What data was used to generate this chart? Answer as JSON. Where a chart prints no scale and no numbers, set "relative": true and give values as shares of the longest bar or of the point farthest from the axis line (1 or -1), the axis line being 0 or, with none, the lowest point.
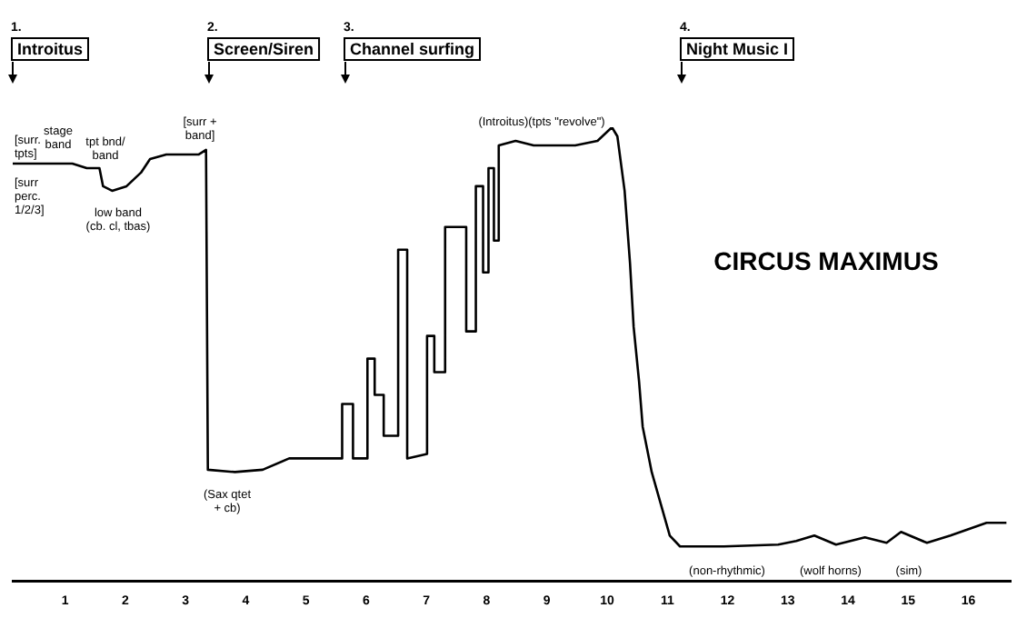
{
  "chart_data": {
    "type": "line",
    "title": "CIRCUS MAXIMUS",
    "relative": true,
    "grid": false,
    "legend": false,
    "marker": "none",
    "line_style": "solid",
    "xlim": [
      0.13,
      16.7
    ],
    "xticks": [
      1,
      2,
      3,
      4,
      5,
      6,
      7,
      8,
      9,
      10,
      11,
      12,
      13,
      14,
      15,
      16
    ],
    "x": [
      0.13,
      0.67,
      1.12,
      1.36,
      1.57,
      1.63,
      1.78,
      2.02,
      2.26,
      2.41,
      2.68,
      2.92,
      3.22,
      3.34,
      3.37,
      3.82,
      4.28,
      4.72,
      5.08,
      5.54,
      5.6,
      5.6,
      5.78,
      5.78,
      6.02,
      6.02,
      6.14,
      6.14,
      6.29,
      6.29,
      6.53,
      6.53,
      6.68,
      6.68,
      7.01,
      7.01,
      7.13,
      7.13,
      7.31,
      7.31,
      7.66,
      7.66,
      7.82,
      7.82,
      7.94,
      7.94,
      8.03,
      8.03,
      8.12,
      8.12,
      8.2,
      8.2,
      8.48,
      8.78,
      9.08,
      9.47,
      9.84,
      10.08,
      10.17,
      10.29,
      10.38,
      10.44,
      10.53,
      10.59,
      10.74,
      10.89,
      11.04,
      11.21,
      11.94,
      12.84,
      13.14,
      13.44,
      13.8,
      14.28,
      14.64,
      14.88,
      15.31,
      15.7,
      16.3,
      16.63
    ],
    "series": [
      {
        "color": "#000000",
        "values": [
          0.92,
          0.92,
          0.92,
          0.91,
          0.91,
          0.87,
          0.86,
          0.87,
          0.9,
          0.93,
          0.94,
          0.94,
          0.94,
          0.95,
          0.245,
          0.24,
          0.245,
          0.27,
          0.27,
          0.27,
          0.27,
          0.39,
          0.39,
          0.27,
          0.27,
          0.49,
          0.49,
          0.41,
          0.41,
          0.32,
          0.32,
          0.73,
          0.73,
          0.27,
          0.28,
          0.54,
          0.54,
          0.46,
          0.46,
          0.78,
          0.78,
          0.55,
          0.55,
          0.87,
          0.87,
          0.68,
          0.68,
          0.91,
          0.91,
          0.75,
          0.75,
          0.96,
          0.97,
          0.96,
          0.96,
          0.96,
          0.97,
          1,
          0.98,
          0.86,
          0.7,
          0.56,
          0.44,
          0.34,
          0.24,
          0.17,
          0.1,
          0.076,
          0.076,
          0.08,
          0.088,
          0.1,
          0.08,
          0.096,
          0.084,
          0.108,
          0.084,
          0.1,
          0.128,
          0.128
        ]
      }
    ],
    "annotations": [
      "1.\nIntroitus",
      "2.\nScreen/Siren",
      "3.\nChannel surfing",
      "4.\nNight Music I",
      "[surr.\ntpts]",
      "[surr\nperc.\n1/2/3]",
      "stage\nband",
      "tpt bnd/\nband",
      "low band\n(cb. cl, tbas)",
      "[surr +\nband]",
      "(Sax qtet\n+ cb)",
      "(Introitus)(tpts \"revolve\")",
      "(non-rhythmic)",
      "(wolf horns)",
      "(sim)"
    ]
  }
}
